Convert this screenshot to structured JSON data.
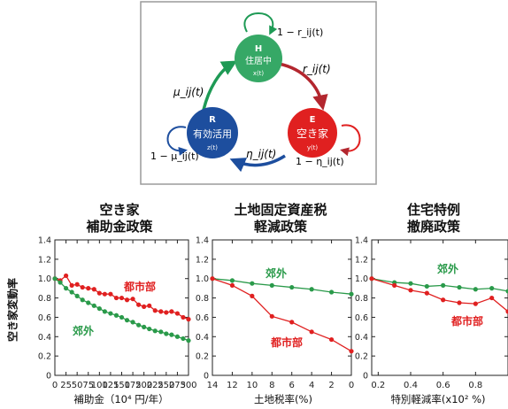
{
  "diagram": {
    "nodes": {
      "H": {
        "letter": "H",
        "name": "住居中",
        "var": "x(t)",
        "color": "#36a866"
      },
      "E": {
        "letter": "E",
        "name": "空き家",
        "var": "y(t)",
        "color": "#e02020"
      },
      "R": {
        "letter": "R",
        "name": "有効活用",
        "var": "z(t)",
        "color": "#1d4e9e"
      }
    },
    "self_loops": {
      "H": "1 − r_ij(t)",
      "E": "1 − η_ij(t)",
      "R": "1 − μ_ij(t)"
    },
    "transitions": {
      "HE": "r_ij(t)",
      "ER": "η_ij(t)",
      "RH": "μ_ij(t)"
    }
  },
  "common_ylabel": "空き家変動率",
  "panels": [
    {
      "title_lines": [
        "空き家",
        "補助金政策"
      ],
      "xlabel": "補助金（10⁴ 円/年）"
    },
    {
      "title_lines": [
        "土地固定資産税",
        "軽減政策"
      ],
      "xlabel": "土地税率(%)"
    },
    {
      "title_lines": [
        "住宅特例",
        "撤廃政策"
      ],
      "xlabel": "特別軽減率(x10² %)"
    }
  ],
  "chart_data": [
    {
      "type": "line",
      "xlabel": "補助金（10⁴ 円/年）",
      "ylabel": "空き家変動率",
      "xlim": [
        0,
        300
      ],
      "ylim": [
        0,
        1.4
      ],
      "xticks": [
        0,
        25,
        50,
        75,
        100,
        125,
        150,
        175,
        200,
        225,
        250,
        275,
        300
      ],
      "yticks": [
        0,
        0.2,
        0.4,
        0.6,
        0.8,
        1.0,
        1.2,
        1.4
      ],
      "series": [
        {
          "name": "都市部",
          "color": "#e02020",
          "x": [
            0,
            12,
            25,
            38,
            50,
            62,
            75,
            88,
            100,
            112,
            125,
            138,
            150,
            162,
            175,
            188,
            200,
            212,
            225,
            238,
            250,
            262,
            275,
            288,
            300
          ],
          "values": [
            1.0,
            0.98,
            1.03,
            0.93,
            0.94,
            0.91,
            0.9,
            0.89,
            0.85,
            0.84,
            0.84,
            0.8,
            0.8,
            0.78,
            0.79,
            0.73,
            0.71,
            0.72,
            0.67,
            0.66,
            0.65,
            0.66,
            0.64,
            0.6,
            0.58
          ]
        },
        {
          "name": "郊外",
          "color": "#2a9a4a",
          "x": [
            0,
            12,
            25,
            38,
            50,
            62,
            75,
            88,
            100,
            112,
            125,
            138,
            150,
            162,
            175,
            188,
            200,
            212,
            225,
            238,
            250,
            262,
            275,
            288,
            300
          ],
          "values": [
            1.0,
            0.96,
            0.9,
            0.86,
            0.82,
            0.78,
            0.75,
            0.72,
            0.69,
            0.66,
            0.64,
            0.62,
            0.6,
            0.57,
            0.55,
            0.52,
            0.5,
            0.48,
            0.46,
            0.45,
            0.43,
            0.42,
            0.4,
            0.38,
            0.36
          ]
        }
      ]
    },
    {
      "type": "line",
      "xlabel": "土地税率(%)",
      "xlim": [
        14,
        0
      ],
      "ylim": [
        0,
        1.4
      ],
      "xticks": [
        14,
        12,
        10,
        8,
        6,
        4,
        2,
        0
      ],
      "yticks": [
        0,
        0.2,
        0.4,
        0.6,
        0.8,
        1.0,
        1.2,
        1.4
      ],
      "series": [
        {
          "name": "郊外",
          "color": "#2a9a4a",
          "x": [
            14,
            12,
            10,
            8,
            6,
            4,
            2,
            0
          ],
          "values": [
            1.0,
            0.98,
            0.95,
            0.93,
            0.91,
            0.89,
            0.86,
            0.84
          ]
        },
        {
          "name": "都市部",
          "color": "#e02020",
          "x": [
            14,
            12,
            10,
            8,
            6,
            4,
            2,
            0
          ],
          "values": [
            1.0,
            0.93,
            0.82,
            0.61,
            0.55,
            0.45,
            0.37,
            0.25
          ]
        }
      ]
    },
    {
      "type": "line",
      "xlabel": "特別軽減率(x10² %)",
      "xlim": [
        0.16,
        1.0
      ],
      "ylim": [
        0,
        1.4
      ],
      "xticks": [
        0.2,
        0.4,
        0.6,
        0.8
      ],
      "yticks": [
        0,
        0.2,
        0.4,
        0.6,
        0.8,
        1.0,
        1.2,
        1.4
      ],
      "series": [
        {
          "name": "郊外",
          "color": "#2a9a4a",
          "x": [
            0.16,
            0.3,
            0.4,
            0.5,
            0.6,
            0.7,
            0.8,
            0.9,
            1.0
          ],
          "values": [
            1.0,
            0.96,
            0.95,
            0.92,
            0.93,
            0.91,
            0.89,
            0.9,
            0.87
          ]
        },
        {
          "name": "都市部",
          "color": "#e02020",
          "x": [
            0.16,
            0.3,
            0.4,
            0.5,
            0.6,
            0.7,
            0.8,
            0.9,
            1.0
          ],
          "values": [
            1.0,
            0.93,
            0.88,
            0.85,
            0.78,
            0.75,
            0.74,
            0.8,
            0.66
          ]
        }
      ]
    }
  ]
}
